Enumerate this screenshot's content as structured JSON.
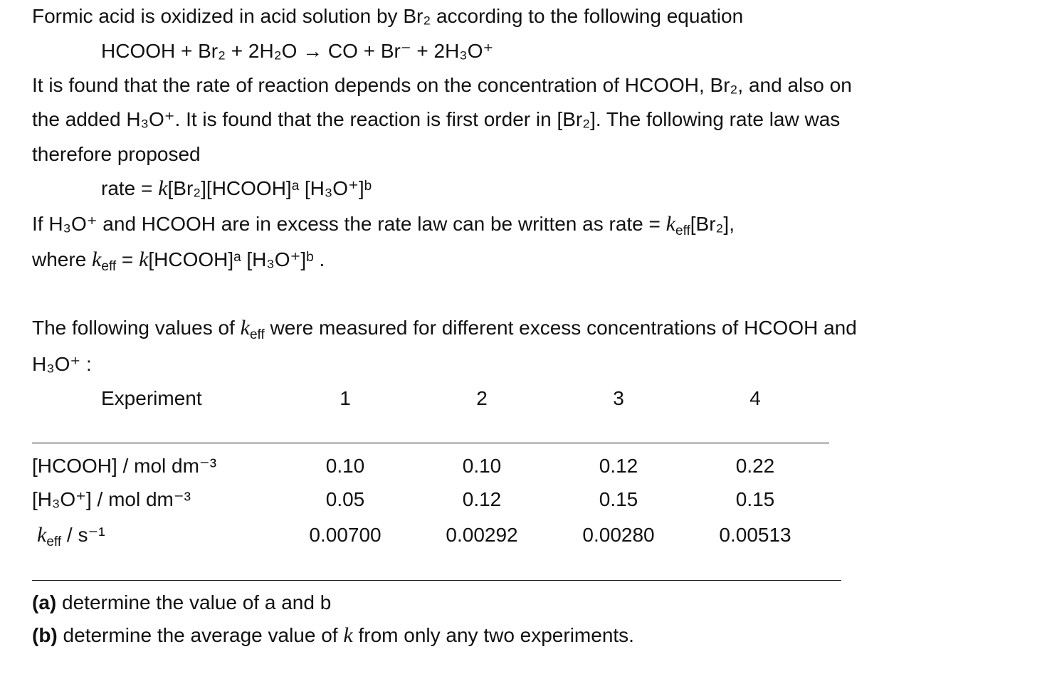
{
  "intro": "Formic acid is oxidized in acid solution by Br₂ according to the following equation",
  "equation": "HCOOH + Br₂ + 2H₂O → CO + Br⁻ + 2H₃O⁺",
  "paragraph": [
    "It is found that the rate of reaction depends on the concentration of HCOOH, Br₂, and also on",
    "the added H₃O⁺. It is found that the reaction is first order in [Br₂]. The following rate law was",
    "therefore proposed"
  ],
  "rate_law": [
    "rate = ",
    "k",
    "[Br₂][HCOOH]ᵃ [H₃O⁺]ᵇ"
  ],
  "excess": [
    [
      "If H₃O⁺ and HCOOH are in excess the rate law can be written as  rate = ",
      "k",
      "eff",
      "[Br₂],"
    ],
    [
      "where ",
      "k",
      "eff",
      " = ",
      "k",
      "[HCOOH]ᵃ [H₃O⁺]ᵇ ."
    ]
  ],
  "measured": [
    [
      "The following values of ",
      "k",
      "eff",
      " were measured for different excess concentrations of HCOOH and"
    ],
    [
      "H₃O⁺ :"
    ]
  ],
  "table": {
    "header": [
      "Experiment",
      "1",
      "2",
      "3",
      "4"
    ],
    "rows": [
      {
        "label": [
          "[HCOOH] / mol dm⁻³"
        ],
        "values": [
          "0.10",
          "0.10",
          "0.12",
          "0.22"
        ]
      },
      {
        "label": [
          "[H₃O⁺] / mol dm⁻³"
        ],
        "values": [
          "0.05",
          "0.12",
          "0.15",
          "0.15"
        ]
      },
      {
        "label": [
          "k",
          "eff",
          " / s⁻¹"
        ],
        "values": [
          "0.00700",
          "0.00292",
          "0.00280",
          "0.00513"
        ]
      }
    ]
  },
  "questions": [
    {
      "label": "(a)",
      "text": [
        " determine the value of a and b"
      ]
    },
    {
      "label": "(b)",
      "text": [
        " determine the average value of ",
        "k",
        " from only any two experiments."
      ]
    }
  ]
}
